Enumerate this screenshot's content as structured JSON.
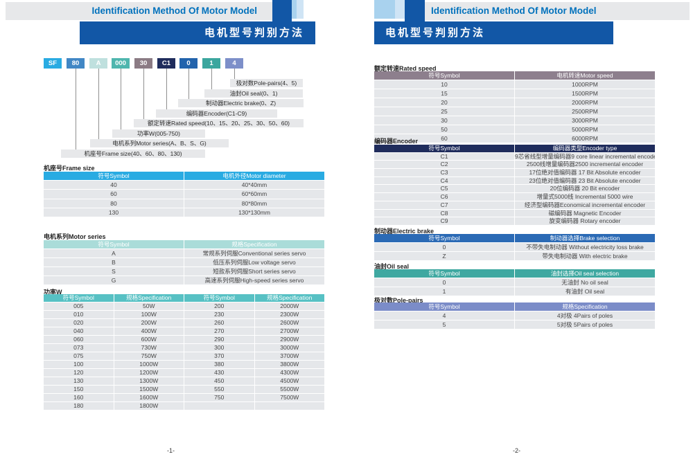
{
  "header_left": {
    "title_en": "Identification Method Of Motor Model",
    "title_zh": "电机型号判别方法"
  },
  "header_right": {
    "title_en": "Identification Method Of Motor Model",
    "title_zh": "电机型号判别方法"
  },
  "colors": {
    "band_gray": "#e7e8ea",
    "accent_blue_text": "#0071bc",
    "dark_blue": "#1257a6",
    "light_blue_square": "#a9d2ee",
    "pale_blue_square": "#cfe4f5"
  },
  "model_code": {
    "boxes": [
      {
        "label": "SF",
        "color": "#29abe2"
      },
      {
        "label": "80",
        "color": "#4187c5"
      },
      {
        "label": "A",
        "color": "#bfe0de"
      },
      {
        "label": "000",
        "color": "#4fb6ae"
      },
      {
        "label": "30",
        "color": "#8b7b84"
      },
      {
        "label": "C1",
        "color": "#1f2c5c"
      },
      {
        "label": "0",
        "color": "#2263ac"
      },
      {
        "label": "1",
        "color": "#3ba69e"
      },
      {
        "label": "4",
        "color": "#7d8fc9"
      }
    ],
    "labels": [
      "极对数Pole-pairs(4、5)",
      "油封Oil seal(0、1)",
      "制动器Electric brake(0、Z)",
      "编码器Encoder(C1-C9)",
      "额定转速Rated speed(10、15、20、25、30、50、60)",
      "功率W(005-750)",
      "电机系列Motor series(A、B、S、G)",
      "机座号Frame size(40、60、80、130)"
    ]
  },
  "tables": {
    "frame_size": {
      "title": "机座号Frame size",
      "header_color": "#29abe2",
      "headers": [
        "符号Symbol",
        "电机外径Motor diameter"
      ],
      "rows": [
        [
          "40",
          "40*40mm"
        ],
        [
          "60",
          "60*60mm"
        ],
        [
          "80",
          "80*80mm"
        ],
        [
          "130",
          "130*130mm"
        ]
      ]
    },
    "motor_series": {
      "title": "电机系列Motor series",
      "header_color": "#aadcd9",
      "headers": [
        "符号Symbol",
        "规格Specification"
      ],
      "rows": [
        [
          "A",
          "常规系列伺服Conventional series servo"
        ],
        [
          "B",
          "低压系列伺服Low voltage servo"
        ],
        [
          "S",
          "短款系列伺服Short series servo"
        ],
        [
          "G",
          "高速系列伺服High-speed series servo"
        ]
      ]
    },
    "power": {
      "title": "功率W",
      "header_color": "#57c1c4",
      "headers": [
        "符号Symbol",
        "规格Specification",
        "符号Symbol",
        "规格Specification"
      ],
      "rows": [
        [
          "005",
          "50W",
          "200",
          "2000W"
        ],
        [
          "010",
          "100W",
          "230",
          "2300W"
        ],
        [
          "020",
          "200W",
          "260",
          "2600W"
        ],
        [
          "040",
          "400W",
          "270",
          "2700W"
        ],
        [
          "060",
          "600W",
          "290",
          "2900W"
        ],
        [
          "073",
          "730W",
          "300",
          "3000W"
        ],
        [
          "075",
          "750W",
          "370",
          "3700W"
        ],
        [
          "100",
          "1000W",
          "380",
          "3800W"
        ],
        [
          "120",
          "1200W",
          "430",
          "4300W"
        ],
        [
          "130",
          "1300W",
          "450",
          "4500W"
        ],
        [
          "150",
          "1500W",
          "550",
          "5500W"
        ],
        [
          "160",
          "1600W",
          "750",
          "7500W"
        ],
        [
          "180",
          "1800W",
          "",
          ""
        ]
      ]
    },
    "rated_speed": {
      "title": "额定转速Rated speed",
      "header_color": "#8d7f8d",
      "headers": [
        "符号Symbol",
        "电机转速Motor speed"
      ],
      "rows": [
        [
          "10",
          "1000RPM"
        ],
        [
          "15",
          "1500RPM"
        ],
        [
          "20",
          "2000RPM"
        ],
        [
          "25",
          "2500RPM"
        ],
        [
          "30",
          "3000RPM"
        ],
        [
          "50",
          "5000RPM"
        ],
        [
          "60",
          "6000RPM"
        ]
      ]
    },
    "encoder": {
      "title": "编码器Encoder",
      "header_color": "#1f2c5c",
      "headers": [
        "符号Symbol",
        "编码器类型Encoder type"
      ],
      "rows": [
        [
          "C1",
          "9芯省线型增量编码器9 core linear incremental encoder"
        ],
        [
          "C2",
          "2500线增量编码器2500 incremental encoder"
        ],
        [
          "C3",
          "17位绝对值编码器 17 Bit Absolute encoder"
        ],
        [
          "C4",
          "23位绝对值编码器 23 Bit Absolute encoder"
        ],
        [
          "C5",
          "20位编码器 20 Bit encoder"
        ],
        [
          "C6",
          "增量式5000线 Incremental 5000 wire"
        ],
        [
          "C7",
          "经济型编码器Economical incremental encoder"
        ],
        [
          "C8",
          "磁编码器 Magnetic Encoder"
        ],
        [
          "C9",
          "旋变编码器 Rotary encoder"
        ]
      ]
    },
    "electric_brake": {
      "title": "制动器Electric brake",
      "header_color": "#2b6ab5",
      "headers": [
        "符号Symbol",
        "制动器选择Brake selection"
      ],
      "rows": [
        [
          "0",
          "不带失电制动器 Without electricity loss brake"
        ],
        [
          "Z",
          "带失电制动器 With electric brake"
        ]
      ]
    },
    "oil_seal": {
      "title": "油封Oil seal",
      "header_color": "#3fa8a1",
      "headers": [
        "符号Symbol",
        "油封选择Oil seal selection"
      ],
      "rows": [
        [
          "0",
          "无油封 No oil seal"
        ],
        [
          "1",
          "有油封 Oil seal"
        ]
      ]
    },
    "pole_pairs": {
      "title": "极对数Pole-pairs",
      "header_color": "#7b8cc8",
      "headers": [
        "符号Symbol",
        "规格Specification"
      ],
      "rows": [
        [
          "4",
          "4对极 4Pairs of poles"
        ],
        [
          "5",
          "5对极 5Pairs of poles"
        ]
      ]
    }
  },
  "footer": {
    "page_left": "-1-",
    "page_right": "-2-"
  }
}
